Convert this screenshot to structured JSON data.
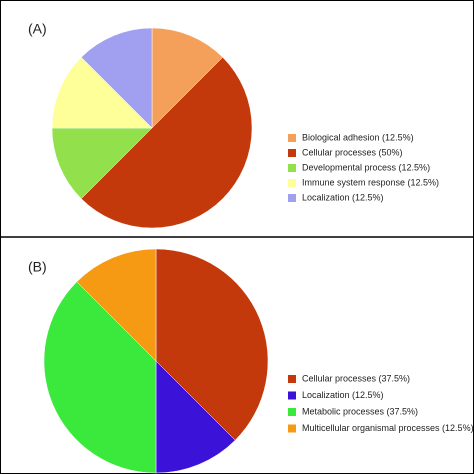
{
  "chart_data": [
    {
      "type": "pie",
      "title": "(A)",
      "categories": [
        "Biological adhesion (12.5%)",
        "Cellular processes (50%)",
        "Developmental process (12.5%)",
        "Immune system response (12.5%)",
        "Localization (12.5%)"
      ],
      "values": [
        12.5,
        50,
        12.5,
        12.5,
        12.5
      ],
      "colors": [
        "#f5a05a",
        "#c3390b",
        "#92e04c",
        "#ffff99",
        "#a09ff0"
      ]
    },
    {
      "type": "pie",
      "title": "(B)",
      "categories": [
        "Cellular processes (37.5%)",
        "Localization (12.5%)",
        "Metabolic processes (37.5%)",
        "Multicellular organismal processes (12.5%)"
      ],
      "values": [
        37.5,
        12.5,
        37.5,
        12.5
      ],
      "colors": [
        "#c3390b",
        "#3a12d8",
        "#3be83c",
        "#f59a12"
      ]
    }
  ]
}
